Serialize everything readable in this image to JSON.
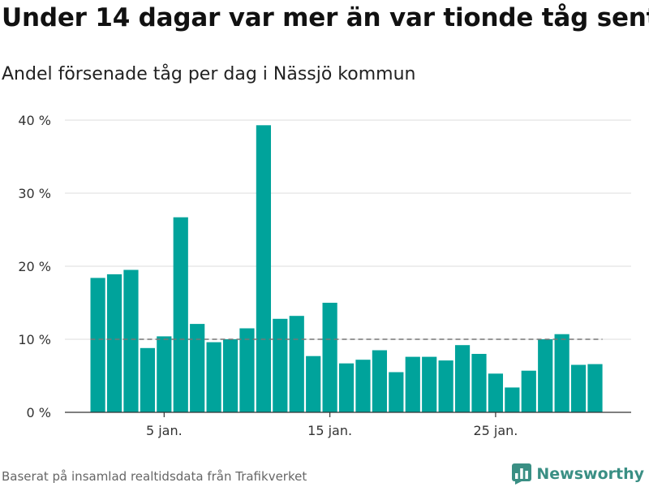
{
  "header": {
    "title": "Under 14 dagar var mer än var tionde tåg sent",
    "subtitle": "Andel försenade tåg per dag i Nässjö kommun"
  },
  "footer": {
    "source": "Baserat på insamlad realtidsdata från Trafikverket"
  },
  "brand": {
    "name": "Newsworthy",
    "color": "#3a8f84",
    "icon": "bar-chart-icon"
  },
  "colors": {
    "bar": "#00a39b",
    "grid": "#dddddd",
    "axis": "#333333",
    "reference_line": "#777777"
  },
  "chart_data": {
    "type": "bar",
    "x": [
      1,
      2,
      3,
      4,
      5,
      6,
      7,
      8,
      9,
      10,
      11,
      12,
      13,
      14,
      15,
      16,
      17,
      18,
      19,
      20,
      21,
      22,
      23,
      24,
      25,
      26,
      27,
      28,
      29,
      30,
      31
    ],
    "values": [
      18.4,
      18.9,
      19.5,
      8.8,
      10.4,
      26.7,
      12.1,
      9.6,
      10.0,
      11.5,
      39.3,
      12.8,
      13.2,
      7.7,
      15.0,
      6.7,
      7.2,
      8.5,
      5.5,
      7.6,
      7.6,
      7.1,
      9.2,
      8.0,
      5.3,
      3.4,
      5.7,
      10.0,
      10.7,
      6.5,
      6.6
    ],
    "reference_value": 10,
    "ylim": [
      0,
      42
    ],
    "yticks": [
      0,
      10,
      20,
      30,
      40
    ],
    "ytick_labels": [
      "0 %",
      "10 %",
      "20 %",
      "30 %",
      "40 %"
    ],
    "xticks": [
      5,
      15,
      25
    ],
    "xtick_labels": [
      "5 jan.",
      "15 jan.",
      "25 jan."
    ],
    "grid": true,
    "legend": "none"
  }
}
